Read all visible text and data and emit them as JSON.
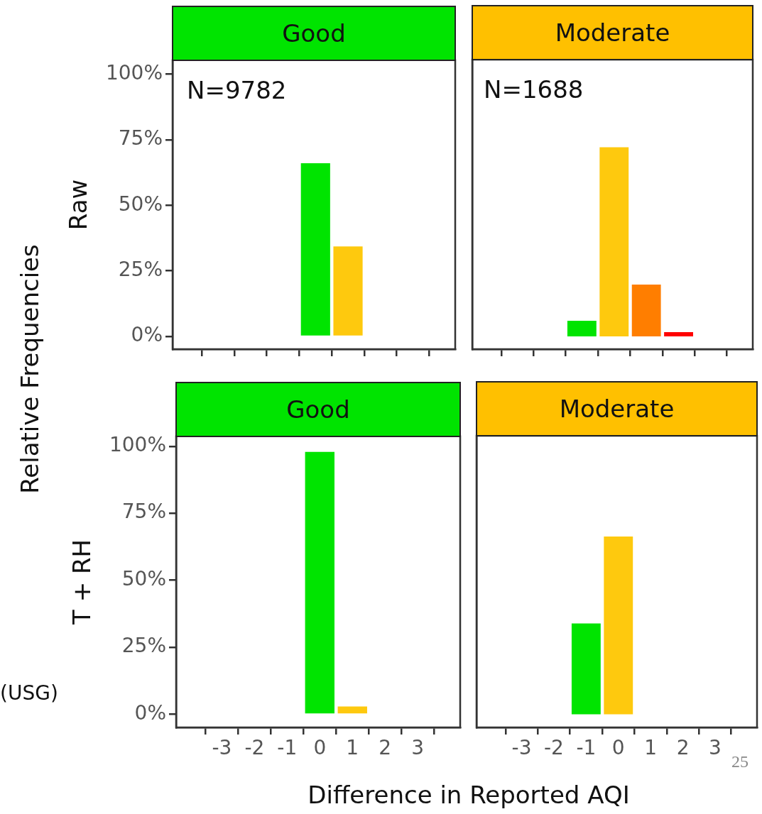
{
  "chart_data": [
    {
      "type": "bar",
      "title": "Good",
      "ylabel": "Raw",
      "x": [
        0,
        1
      ],
      "values": [
        66.1,
        34.3
      ],
      "colors": [
        "#00e400",
        "#fec90e"
      ],
      "xlim": [
        -4.4,
        4.3
      ],
      "xticks": [
        -3,
        -2,
        -1,
        0,
        1,
        2,
        3
      ],
      "ylim": [
        -4.9,
        105.4
      ],
      "yticks": [
        {
          "value": 0,
          "label": "0%"
        },
        {
          "value": 25,
          "label": "25%"
        },
        {
          "value": 50,
          "label": "50%"
        },
        {
          "value": 75,
          "label": "75%"
        },
        {
          "value": 100,
          "label": "100%"
        }
      ],
      "tick_labels": "y",
      "annotations": [
        "N=9782",
        "Relative Frequencies"
      ]
    },
    {
      "type": "bar",
      "title": "Moderate",
      "x": [
        -1,
        0,
        1,
        2
      ],
      "values": [
        5.9,
        72.0,
        19.7,
        1.6
      ],
      "colors": [
        "#00e400",
        "#fec90e",
        "#ff7e00",
        "#ff0000"
      ],
      "xlim": [
        -4.4,
        4.3
      ],
      "xticks": [
        -3,
        -2,
        -1,
        0,
        1,
        2,
        3
      ],
      "ylim": [
        -4.9,
        105.4
      ],
      "tick_labels": false,
      "annotations": [
        "N=1688"
      ]
    },
    {
      "type": "bar",
      "title": "Good",
      "ylabel": "T + RH",
      "x": [
        0,
        1
      ],
      "values": [
        97.9,
        2.9
      ],
      "colors": [
        "#00e400",
        "#fec90e"
      ],
      "xlim": [
        -4.4,
        4.3
      ],
      "xticks": [
        -3,
        -2,
        -1,
        0,
        1,
        2,
        3
      ],
      "ylim": [
        -4.9,
        103.7
      ],
      "yticks": [
        {
          "value": 0,
          "label": "0%"
        },
        {
          "value": 25,
          "label": "25%"
        },
        {
          "value": 50,
          "label": "50%"
        },
        {
          "value": 75,
          "label": "75%"
        },
        {
          "value": 100,
          "label": "100%"
        }
      ],
      "annotations": [
        "(USG)"
      ]
    },
    {
      "type": "bar",
      "title": "Moderate",
      "xlabel": "Difference in Reported AQI",
      "x": [
        -1,
        0
      ],
      "values": [
        33.8,
        66.2
      ],
      "colors": [
        "#00e400",
        "#fec90e"
      ],
      "xlim": [
        -4.4,
        4.3
      ],
      "xticks": [
        -3,
        -2,
        -1,
        0,
        1,
        2,
        3
      ],
      "ylim": [
        -4.9,
        103.7
      ],
      "tick_labels": "x",
      "annotations": [
        "25"
      ]
    }
  ]
}
